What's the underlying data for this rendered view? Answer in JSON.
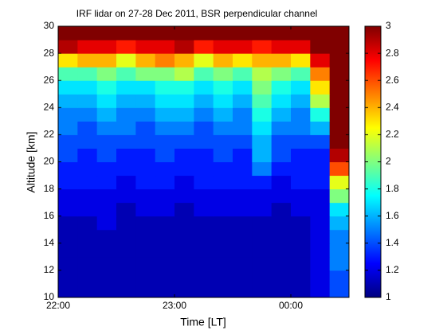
{
  "chart_data": {
    "type": "heatmap",
    "title": "IRF lidar on 27-28 Dec 2011, BSR perpendicular channel",
    "xlabel": "Time [LT]",
    "ylabel": "Altitude [km]",
    "xlim": [
      22,
      24.5
    ],
    "xticks": [
      {
        "value": 22,
        "label": "22:00"
      },
      {
        "value": 23,
        "label": "23:00"
      },
      {
        "value": 24,
        "label": "00:00"
      }
    ],
    "ylim": [
      10,
      30
    ],
    "yticks": [
      10,
      12,
      14,
      16,
      18,
      20,
      22,
      24,
      26,
      28,
      30
    ],
    "xbins": [
      22,
      22.1667,
      22.3333,
      22.5,
      22.6667,
      22.8333,
      23,
      23.1667,
      23.3333,
      23.5,
      23.6667,
      23.8333,
      24,
      24.1667,
      24.3333,
      24.5
    ],
    "ybins": [
      10,
      11,
      12,
      13,
      14,
      15,
      16,
      17,
      18,
      19,
      20,
      21,
      22,
      23,
      24,
      25,
      26,
      27,
      28,
      29,
      30
    ],
    "colormap": "jet",
    "clim": [
      1,
      3
    ],
    "cticks": [
      1,
      1.2,
      1.4,
      1.6,
      1.8,
      2,
      2.2,
      2.4,
      2.6,
      2.8,
      3
    ],
    "values": [
      [
        1.1,
        1.1,
        1.1,
        1.1,
        1.1,
        1.1,
        1.1,
        1.1,
        1.1,
        1.1,
        1.1,
        1.1,
        1.1,
        1.2,
        1.4
      ],
      [
        1.1,
        1.1,
        1.1,
        1.1,
        1.1,
        1.1,
        1.1,
        1.1,
        1.1,
        1.1,
        1.1,
        1.1,
        1.1,
        1.2,
        1.4
      ],
      [
        1.1,
        1.1,
        1.1,
        1.1,
        1.1,
        1.1,
        1.1,
        1.1,
        1.1,
        1.1,
        1.1,
        1.1,
        1.1,
        1.2,
        1.5
      ],
      [
        1.1,
        1.1,
        1.1,
        1.1,
        1.1,
        1.1,
        1.1,
        1.1,
        1.1,
        1.1,
        1.1,
        1.1,
        1.1,
        1.2,
        1.5
      ],
      [
        1.1,
        1.1,
        1.1,
        1.1,
        1.1,
        1.1,
        1.1,
        1.1,
        1.1,
        1.1,
        1.1,
        1.1,
        1.1,
        1.2,
        1.5
      ],
      [
        1.1,
        1.1,
        1.2,
        1.1,
        1.1,
        1.1,
        1.1,
        1.1,
        1.1,
        1.1,
        1.1,
        1.1,
        1.1,
        1.2,
        1.6
      ],
      [
        1.2,
        1.2,
        1.2,
        1.1,
        1.2,
        1.2,
        1.1,
        1.2,
        1.2,
        1.2,
        1.2,
        1.1,
        1.2,
        1.2,
        1.7
      ],
      [
        1.2,
        1.2,
        1.2,
        1.2,
        1.2,
        1.2,
        1.2,
        1.2,
        1.2,
        1.2,
        1.2,
        1.2,
        1.2,
        1.2,
        2.0
      ],
      [
        1.3,
        1.3,
        1.3,
        1.2,
        1.3,
        1.3,
        1.2,
        1.3,
        1.3,
        1.3,
        1.3,
        1.2,
        1.3,
        1.3,
        2.2
      ],
      [
        1.3,
        1.3,
        1.3,
        1.3,
        1.3,
        1.3,
        1.3,
        1.3,
        1.3,
        1.3,
        1.5,
        1.3,
        1.3,
        1.3,
        2.6
      ],
      [
        1.4,
        1.3,
        1.4,
        1.3,
        1.3,
        1.4,
        1.3,
        1.3,
        1.4,
        1.3,
        1.6,
        1.4,
        1.3,
        1.3,
        2.9
      ],
      [
        1.4,
        1.4,
        1.4,
        1.4,
        1.4,
        1.4,
        1.4,
        1.4,
        1.4,
        1.4,
        1.6,
        1.4,
        1.4,
        1.4,
        3
      ],
      [
        1.5,
        1.4,
        1.5,
        1.5,
        1.4,
        1.5,
        1.5,
        1.4,
        1.5,
        1.5,
        1.7,
        1.5,
        1.5,
        1.6,
        3
      ],
      [
        1.5,
        1.5,
        1.6,
        1.5,
        1.5,
        1.6,
        1.6,
        1.5,
        1.6,
        1.5,
        1.8,
        1.6,
        1.5,
        1.8,
        3
      ],
      [
        1.6,
        1.6,
        1.7,
        1.6,
        1.6,
        1.7,
        1.7,
        1.6,
        1.7,
        1.6,
        1.9,
        1.7,
        1.6,
        2.1,
        3
      ],
      [
        1.7,
        1.7,
        1.8,
        1.7,
        1.7,
        1.8,
        1.8,
        1.7,
        1.8,
        1.7,
        2.0,
        1.8,
        1.7,
        2.3,
        3
      ],
      [
        1.9,
        1.9,
        2.0,
        1.9,
        2.0,
        2.0,
        2.1,
        1.9,
        2.0,
        1.9,
        2.1,
        2.0,
        1.9,
        2.5,
        3
      ],
      [
        2.3,
        2.4,
        2.4,
        2.2,
        2.4,
        2.5,
        2.4,
        2.2,
        2.4,
        2.3,
        2.4,
        2.4,
        2.3,
        2.8,
        3
      ],
      [
        2.9,
        2.8,
        2.8,
        2.7,
        2.8,
        2.8,
        2.9,
        2.7,
        2.8,
        2.8,
        2.7,
        2.8,
        2.8,
        3,
        3
      ],
      [
        3,
        3,
        3,
        3,
        3,
        3,
        3,
        3,
        3,
        3,
        3,
        3,
        3,
        3,
        3
      ]
    ]
  }
}
